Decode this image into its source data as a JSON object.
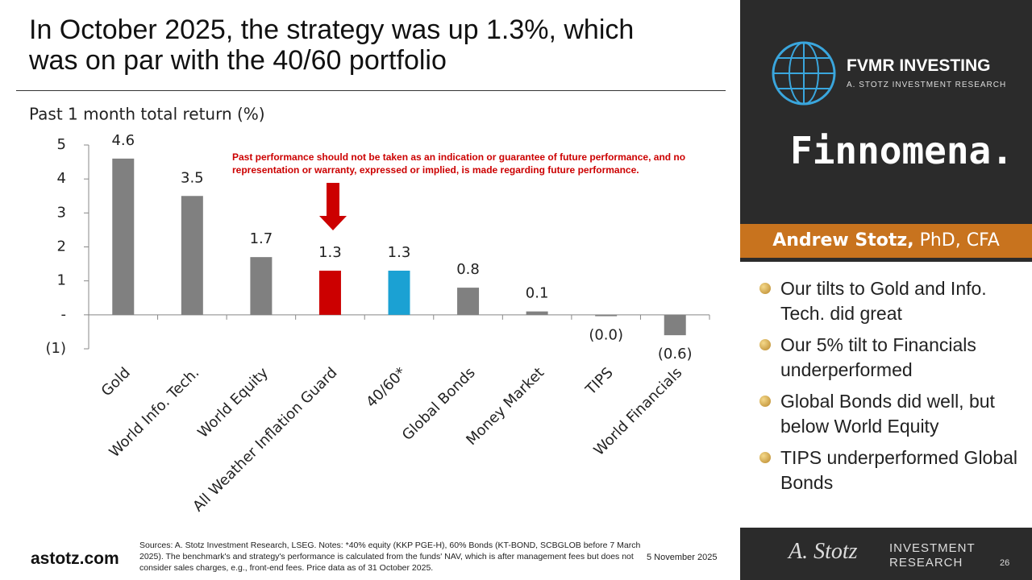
{
  "header": {
    "title": "In October 2025, the strategy was up 1.3%, which was on par with the 40/60 portfolio"
  },
  "chart_data": {
    "type": "bar",
    "title": "Past 1 month total return (%)",
    "annotation": "Past performance should not be taken as an indication or guarantee of future performance, and no representation or warranty, expressed or implied, is made regarding future performance.",
    "categories": [
      "Gold",
      "World Info. Tech.",
      "World Equity",
      "All Weather Inflation Guard",
      "40/60*",
      "Global Bonds",
      "Money Market",
      "TIPS",
      "World Financials"
    ],
    "values": [
      4.6,
      3.5,
      1.7,
      1.3,
      1.3,
      0.8,
      0.1,
      -0.04,
      -0.6
    ],
    "value_labels": [
      "4.6",
      "3.5",
      "1.7",
      "1.3",
      "1.3",
      "0.8",
      "0.1",
      "(0.0)",
      "(0.6)"
    ],
    "colors": [
      "#808080",
      "#808080",
      "#808080",
      "#cc0000",
      "#1ba1d3",
      "#808080",
      "#808080",
      "#808080",
      "#808080"
    ],
    "ylim": [
      -1,
      5
    ],
    "yticks": [
      5,
      4,
      3,
      2,
      1,
      {
        "value": 0,
        "label": "-"
      },
      {
        "value": -1,
        "label": "(1)"
      }
    ],
    "grid": false
  },
  "sidebar": {
    "brand": "FVMR INVESTING",
    "brand_sub": "A. STOTZ INVESTMENT RESEARCH",
    "partner": "Finnomena.",
    "presenter_name": "Andrew Stotz,",
    "presenter_credentials": "PhD, CFA",
    "bullets": [
      "Our tilts to Gold and Info. Tech. did great",
      "Our 5% tilt to Financials underperformed",
      "Global Bonds did well, but below World Equity",
      "TIPS underperformed Global Bonds"
    ]
  },
  "footer": {
    "site": "astotz.com",
    "sources": "Sources: A. Stotz Investment Research, LSEG. Notes: *40% equity (KKP PGE-H), 60% Bonds (KT-BOND, SCBGLOB before 7 March 2025). The benchmark's and strategy's performance is calculated from the funds' NAV, which is after management fees but does not consider sales charges, e.g., front-end fees. Price data as of 31 October 2025.",
    "date": "5 November 2025",
    "logo_script": "A. Stotz",
    "logo_text": "INVESTMENT RESEARCH",
    "page": "26"
  }
}
